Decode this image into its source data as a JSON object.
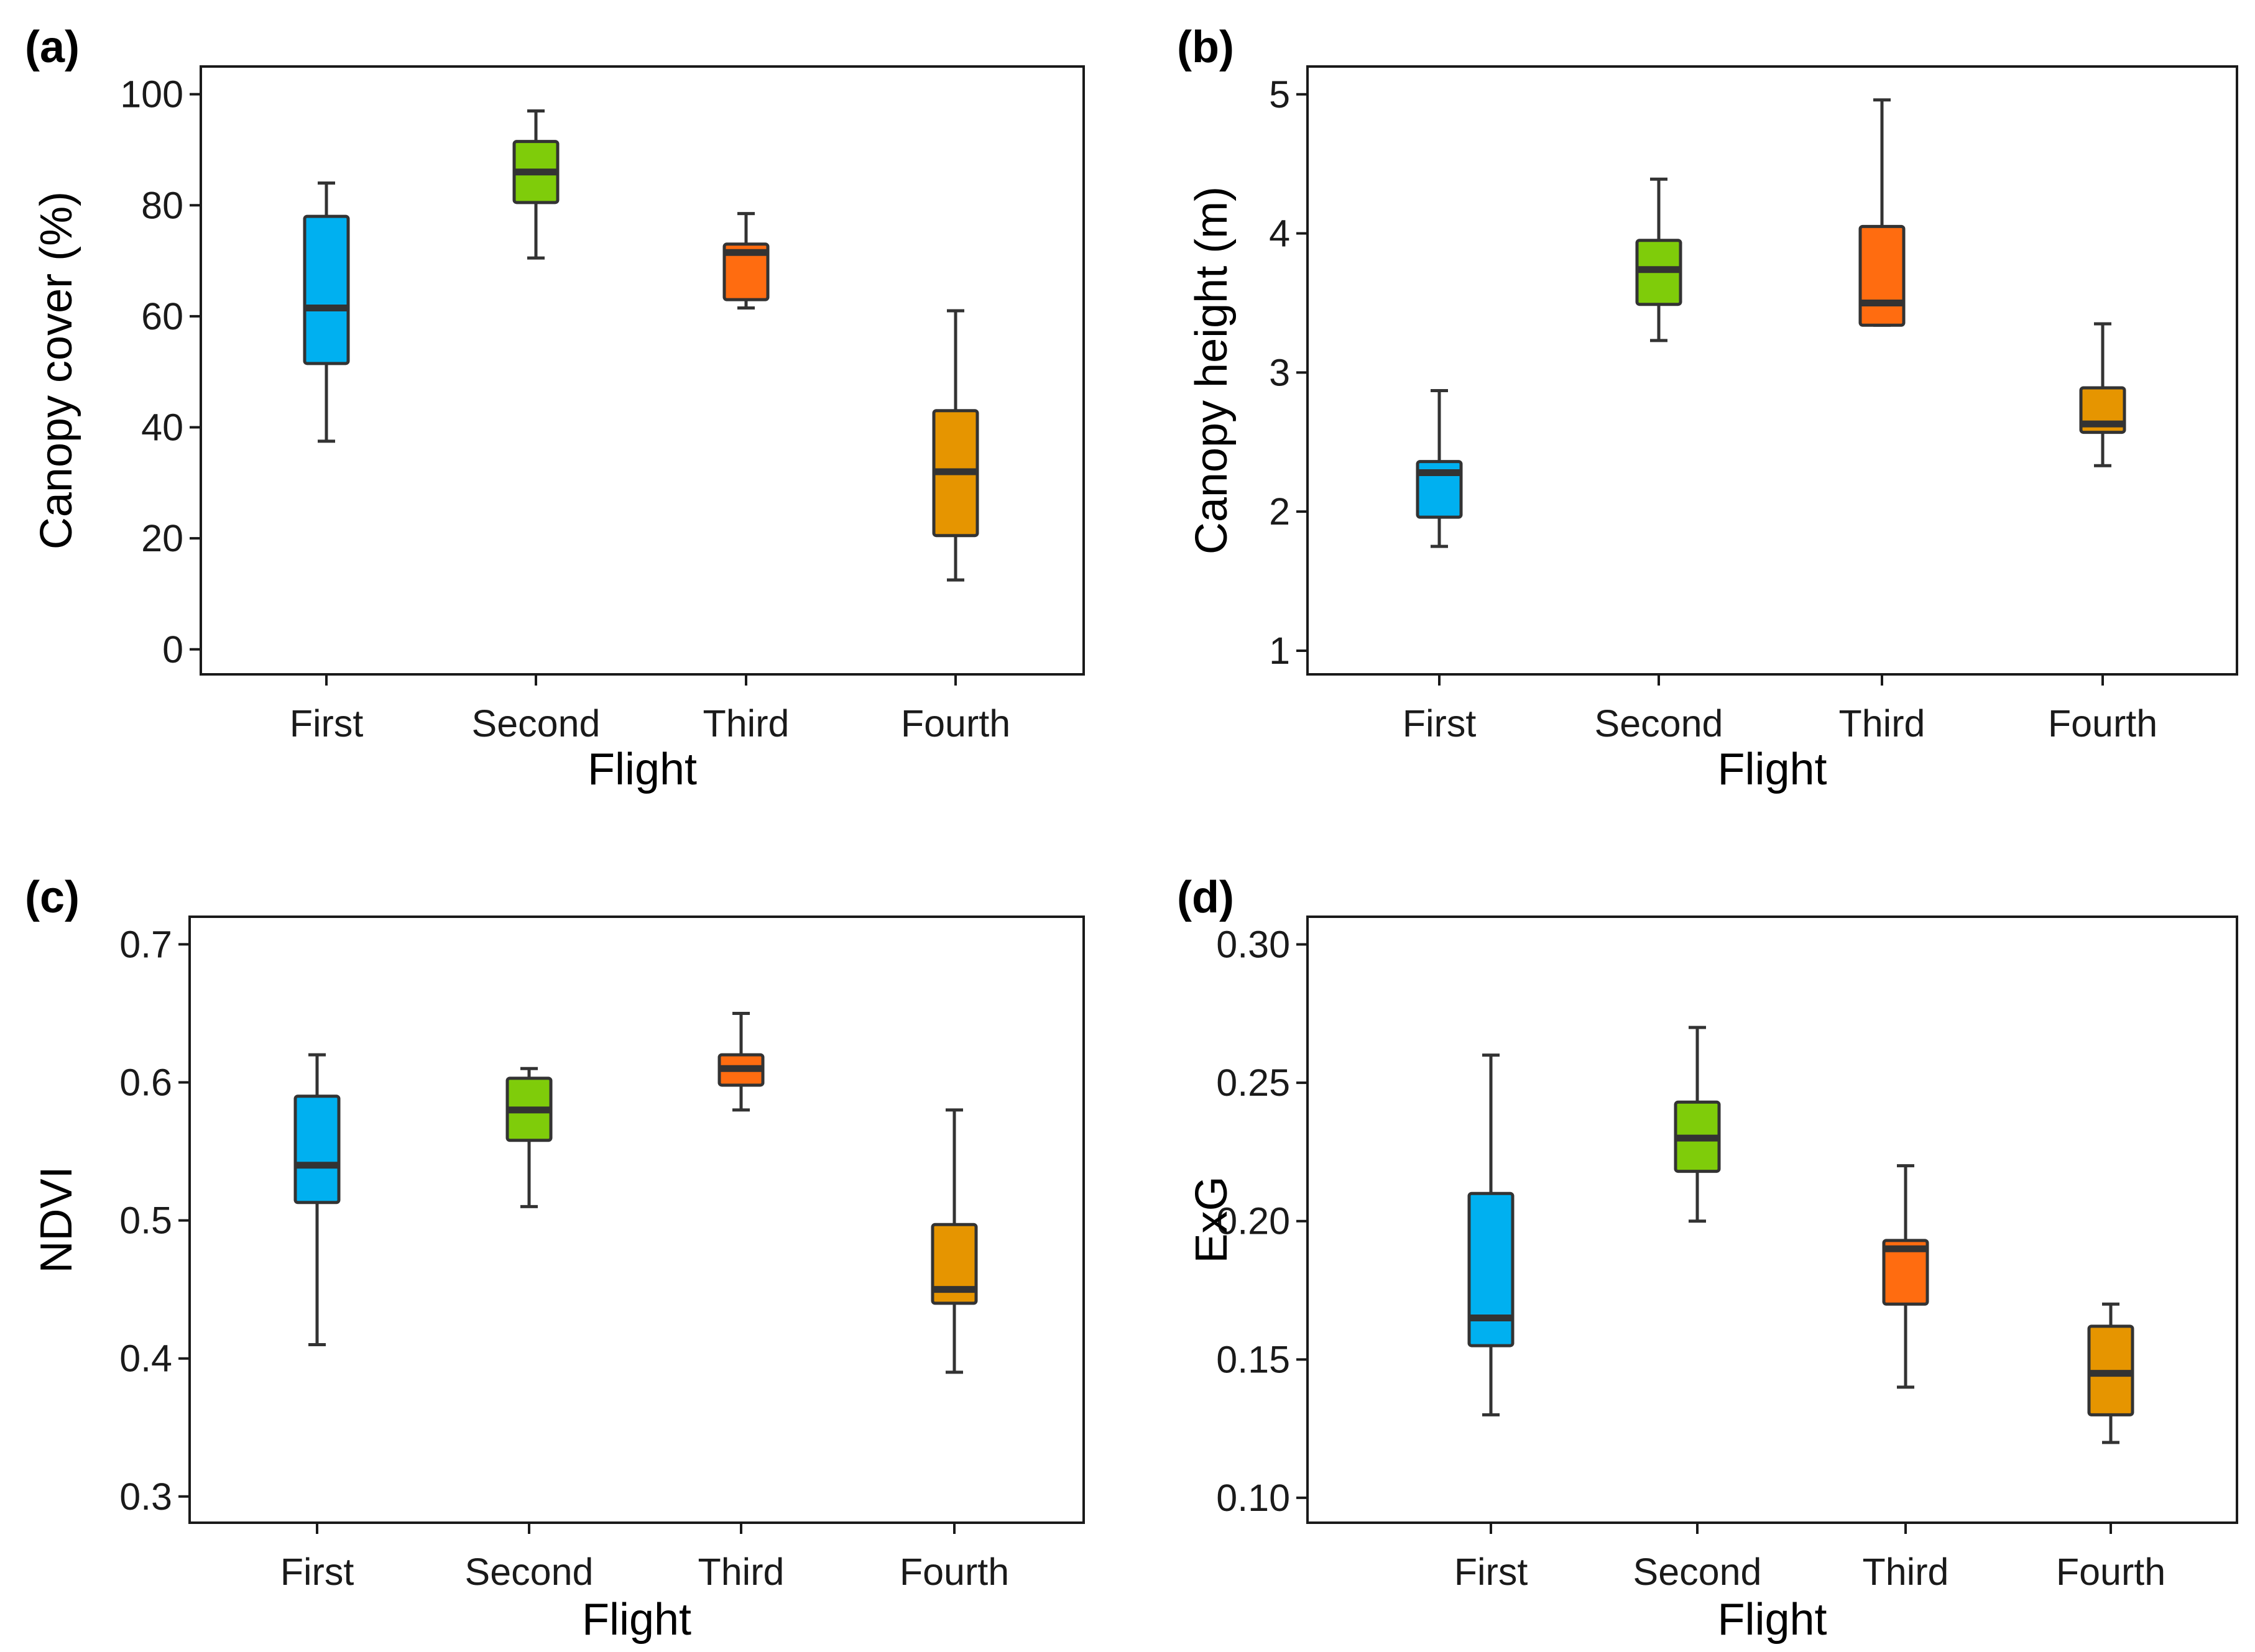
{
  "figure": {
    "background": "#ffffff",
    "axis_color": "#1a1a1a",
    "median_color": "#333333",
    "palette": {
      "First": "#00b0f0",
      "Second": "#7fcc0a",
      "Third": "#ff6c10",
      "Fourth": "#e69500"
    }
  },
  "chart_data": [
    {
      "type": "box",
      "panel_label": "(a)",
      "xlabel": "Flight",
      "ylabel": "Canopy cover (%)",
      "categories": [
        "First",
        "Second",
        "Third",
        "Fourth"
      ],
      "ylim": [
        -4.5,
        105
      ],
      "yticks": [
        0,
        20,
        40,
        60,
        80,
        100
      ],
      "ytick_labels": [
        "0",
        "20",
        "40",
        "60",
        "80",
        "100"
      ],
      "grid": false,
      "boxes": [
        {
          "name": "First",
          "min": 37.5,
          "q1": 51.5,
          "median": 61.5,
          "q3": 78.0,
          "max": 84.0
        },
        {
          "name": "Second",
          "min": 70.5,
          "q1": 80.5,
          "median": 86.0,
          "q3": 91.5,
          "max": 97.0
        },
        {
          "name": "Third",
          "min": 61.5,
          "q1": 63.0,
          "median": 71.5,
          "q3": 73.0,
          "max": 78.5
        },
        {
          "name": "Fourth",
          "min": 12.5,
          "q1": 20.5,
          "median": 32.0,
          "q3": 43.0,
          "max": 61.0
        }
      ]
    },
    {
      "type": "box",
      "panel_label": "(b)",
      "xlabel": "Flight",
      "ylabel": "Canopy height (m)",
      "categories": [
        "First",
        "Second",
        "Third",
        "Fourth"
      ],
      "ylim": [
        0.83,
        5.2
      ],
      "yticks": [
        1,
        2,
        3,
        4,
        5
      ],
      "ytick_labels": [
        "1",
        "2",
        "3",
        "4",
        "5"
      ],
      "grid": false,
      "boxes": [
        {
          "name": "First",
          "min": 1.75,
          "q1": 1.96,
          "median": 2.28,
          "q3": 2.36,
          "max": 2.87
        },
        {
          "name": "Second",
          "min": 3.23,
          "q1": 3.49,
          "median": 3.74,
          "q3": 3.95,
          "max": 4.39
        },
        {
          "name": "Third",
          "min": 3.34,
          "q1": 3.34,
          "median": 3.5,
          "q3": 4.05,
          "max": 4.96
        },
        {
          "name": "Fourth",
          "min": 2.33,
          "q1": 2.57,
          "median": 2.63,
          "q3": 2.89,
          "max": 3.35
        }
      ]
    },
    {
      "type": "box",
      "panel_label": "(c)",
      "xlabel": "Flight",
      "ylabel": "NDVI",
      "categories": [
        "First",
        "Second",
        "Third",
        "Fourth"
      ],
      "ylim": [
        0.281,
        0.72
      ],
      "yticks": [
        0.3,
        0.4,
        0.5,
        0.6,
        0.7
      ],
      "ytick_labels": [
        "0.3",
        "0.4",
        "0.5",
        "0.6",
        "0.7"
      ],
      "grid": false,
      "boxes": [
        {
          "name": "First",
          "min": 0.41,
          "q1": 0.513,
          "median": 0.54,
          "q3": 0.59,
          "max": 0.62
        },
        {
          "name": "Second",
          "min": 0.51,
          "q1": 0.558,
          "median": 0.58,
          "q3": 0.603,
          "max": 0.61
        },
        {
          "name": "Third",
          "min": 0.58,
          "q1": 0.598,
          "median": 0.61,
          "q3": 0.62,
          "max": 0.65
        },
        {
          "name": "Fourth",
          "min": 0.39,
          "q1": 0.44,
          "median": 0.45,
          "q3": 0.497,
          "max": 0.58
        }
      ]
    },
    {
      "type": "box",
      "panel_label": "(d)",
      "xlabel": "Flight",
      "ylabel": "ExG",
      "categories": [
        "First",
        "Second",
        "Third",
        "Fourth"
      ],
      "ylim": [
        0.091,
        0.31
      ],
      "yticks": [
        0.1,
        0.15,
        0.2,
        0.25,
        0.3
      ],
      "ytick_labels": [
        "0.10",
        "0.15",
        "0.20",
        "0.25",
        "0.30"
      ],
      "grid": false,
      "boxes": [
        {
          "name": "First",
          "min": 0.13,
          "q1": 0.155,
          "median": 0.165,
          "q3": 0.21,
          "max": 0.26
        },
        {
          "name": "Second",
          "min": 0.2,
          "q1": 0.218,
          "median": 0.23,
          "q3": 0.243,
          "max": 0.27
        },
        {
          "name": "Third",
          "min": 0.14,
          "q1": 0.17,
          "median": 0.19,
          "q3": 0.193,
          "max": 0.22
        },
        {
          "name": "Fourth",
          "min": 0.12,
          "q1": 0.13,
          "median": 0.145,
          "q3": 0.162,
          "max": 0.17
        }
      ]
    }
  ]
}
